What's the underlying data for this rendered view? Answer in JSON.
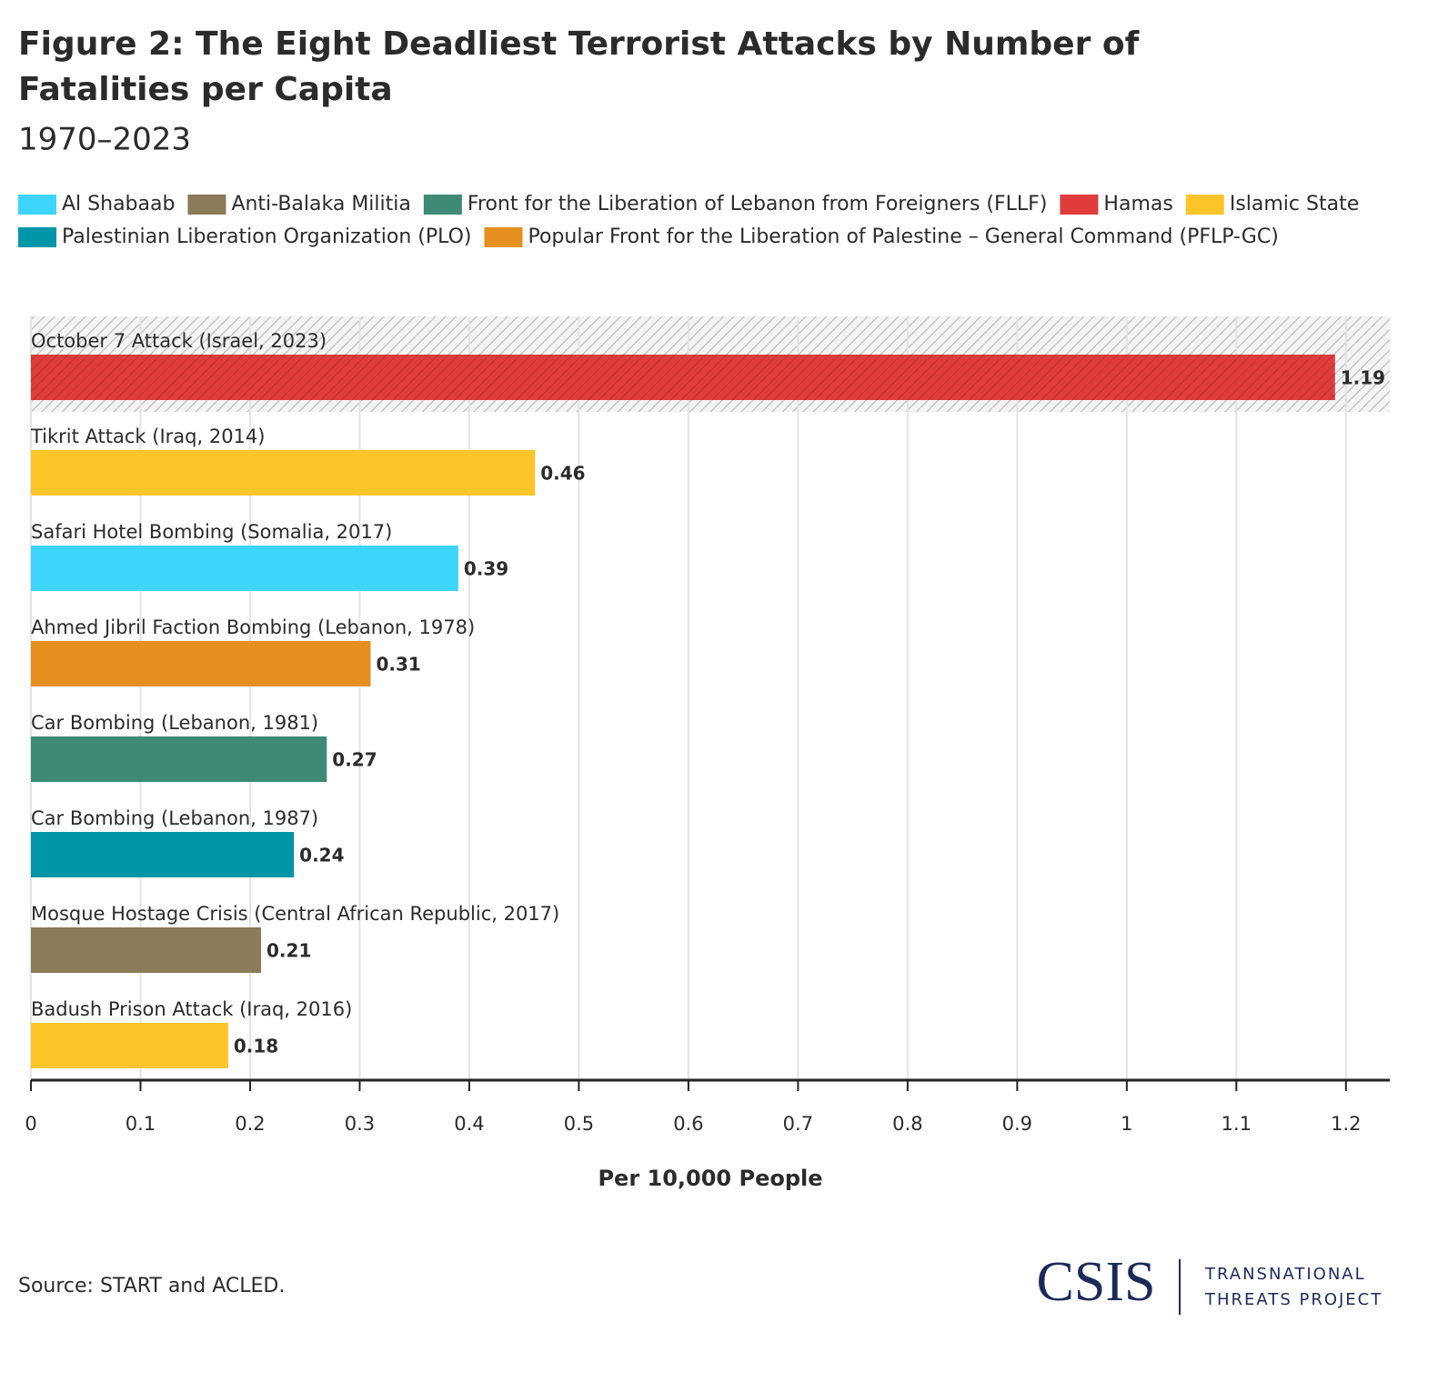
{
  "chart_data": {
    "type": "bar",
    "orientation": "horizontal",
    "title": "Figure 2: The Eight Deadliest Terrorist Attacks by Number of Fatalities per Capita",
    "subtitle": "1970–2023",
    "legend": [
      {
        "name": "Al Shabaab",
        "color": "#3dd5fb"
      },
      {
        "name": "Anti-Balaka Militia",
        "color": "#8b7b5a"
      },
      {
        "name": "Front for the Liberation of Lebanon from Foreigners (FLLF)",
        "color": "#3f8a76"
      },
      {
        "name": "Hamas",
        "color": "#e03c3c"
      },
      {
        "name": "Islamic State",
        "color": "#fdc528"
      },
      {
        "name": "Palestinian Liberation Organization (PLO)",
        "color": "#0095a8"
      },
      {
        "name": "Popular Front for the Liberation of Palestine – General Command (PFLP-GC)",
        "color": "#e5901e"
      }
    ],
    "categories": [
      "October 7 Attack (Israel, 2023)",
      "Tikrit Attack (Iraq, 2014)",
      "Safari Hotel Bombing (Somalia, 2017)",
      "Ahmed Jibril Faction Bombing (Lebanon, 1978)",
      "Car Bombing (Lebanon, 1981)",
      "Car Bombing (Lebanon, 1987)",
      "Mosque Hostage Crisis (Central African Republic, 2017)",
      "Badush Prison Attack (Iraq, 2016)"
    ],
    "category_groups": [
      "Hamas",
      "Islamic State",
      "Al Shabaab",
      "Popular Front for the Liberation of Palestine – General Command (PFLP-GC)",
      "Front for the Liberation of Lebanon from Foreigners (FLLF)",
      "Palestinian Liberation Organization (PLO)",
      "Anti-Balaka Militia",
      "Islamic State"
    ],
    "values": [
      1.19,
      0.46,
      0.39,
      0.31,
      0.27,
      0.24,
      0.21,
      0.18
    ],
    "highlight_category": "October 7 Attack (Israel, 2023)",
    "xlim": [
      0,
      1.24
    ],
    "xticks": [
      0,
      0.1,
      0.2,
      0.3,
      0.4,
      0.5,
      0.6,
      0.7,
      0.8,
      0.9,
      1,
      1.1,
      1.2
    ],
    "xlabel": "Per 10,000 People",
    "grid": true,
    "source": "Source: START and ACLED.",
    "logo": {
      "name": "CSIS",
      "lines": [
        "TRANSNATIONAL",
        "THREATS PROJECT"
      ]
    }
  }
}
